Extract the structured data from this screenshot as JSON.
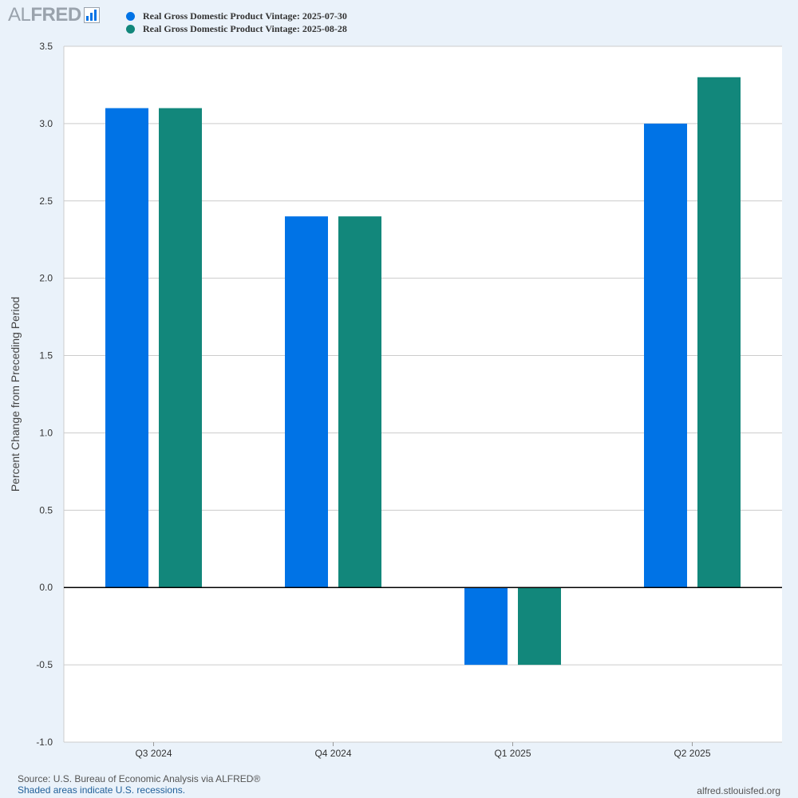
{
  "brand": {
    "logo_prefix": "AL",
    "logo_main": "FRED",
    "logo_icon": "bar-chart-icon"
  },
  "footer": {
    "source": "Source: U.S. Bureau of Economic Analysis via ALFRED®",
    "recession_note": "Shaded areas indicate U.S. recessions.",
    "site": "alfred.stlouisfed.org"
  },
  "colors": {
    "background": "#eaf2fa",
    "plot_background": "#ffffff",
    "series_1": "#0073e6",
    "series_2": "#12877b",
    "grid": "#cccccc",
    "zero_line": "#000000",
    "text": "#333333"
  },
  "chart_data": {
    "type": "bar",
    "title": "",
    "xlabel": "",
    "ylabel": "Percent Change from Preceding Period",
    "categories": [
      "Q3 2024",
      "Q4 2024",
      "Q1 2025",
      "Q2 2025"
    ],
    "series": [
      {
        "name": "Real Gross Domestic Product Vintage: 2025-07-30",
        "color": "#0073e6",
        "values": [
          3.1,
          2.4,
          -0.5,
          3.0
        ]
      },
      {
        "name": "Real Gross Domestic Product Vintage: 2025-08-28",
        "color": "#12877b",
        "values": [
          3.1,
          2.4,
          -0.5,
          3.3
        ]
      }
    ],
    "ylim": [
      -1.0,
      3.5
    ],
    "yticks": [
      -1.0,
      -0.5,
      0.0,
      0.5,
      1.0,
      1.5,
      2.0,
      2.5,
      3.0,
      3.5
    ],
    "ytick_labels": [
      "-1.0",
      "-0.5",
      "0.0",
      "0.5",
      "1.0",
      "1.5",
      "2.0",
      "2.5",
      "3.0",
      "3.5"
    ],
    "grid": true,
    "legend_position": "top-left"
  }
}
